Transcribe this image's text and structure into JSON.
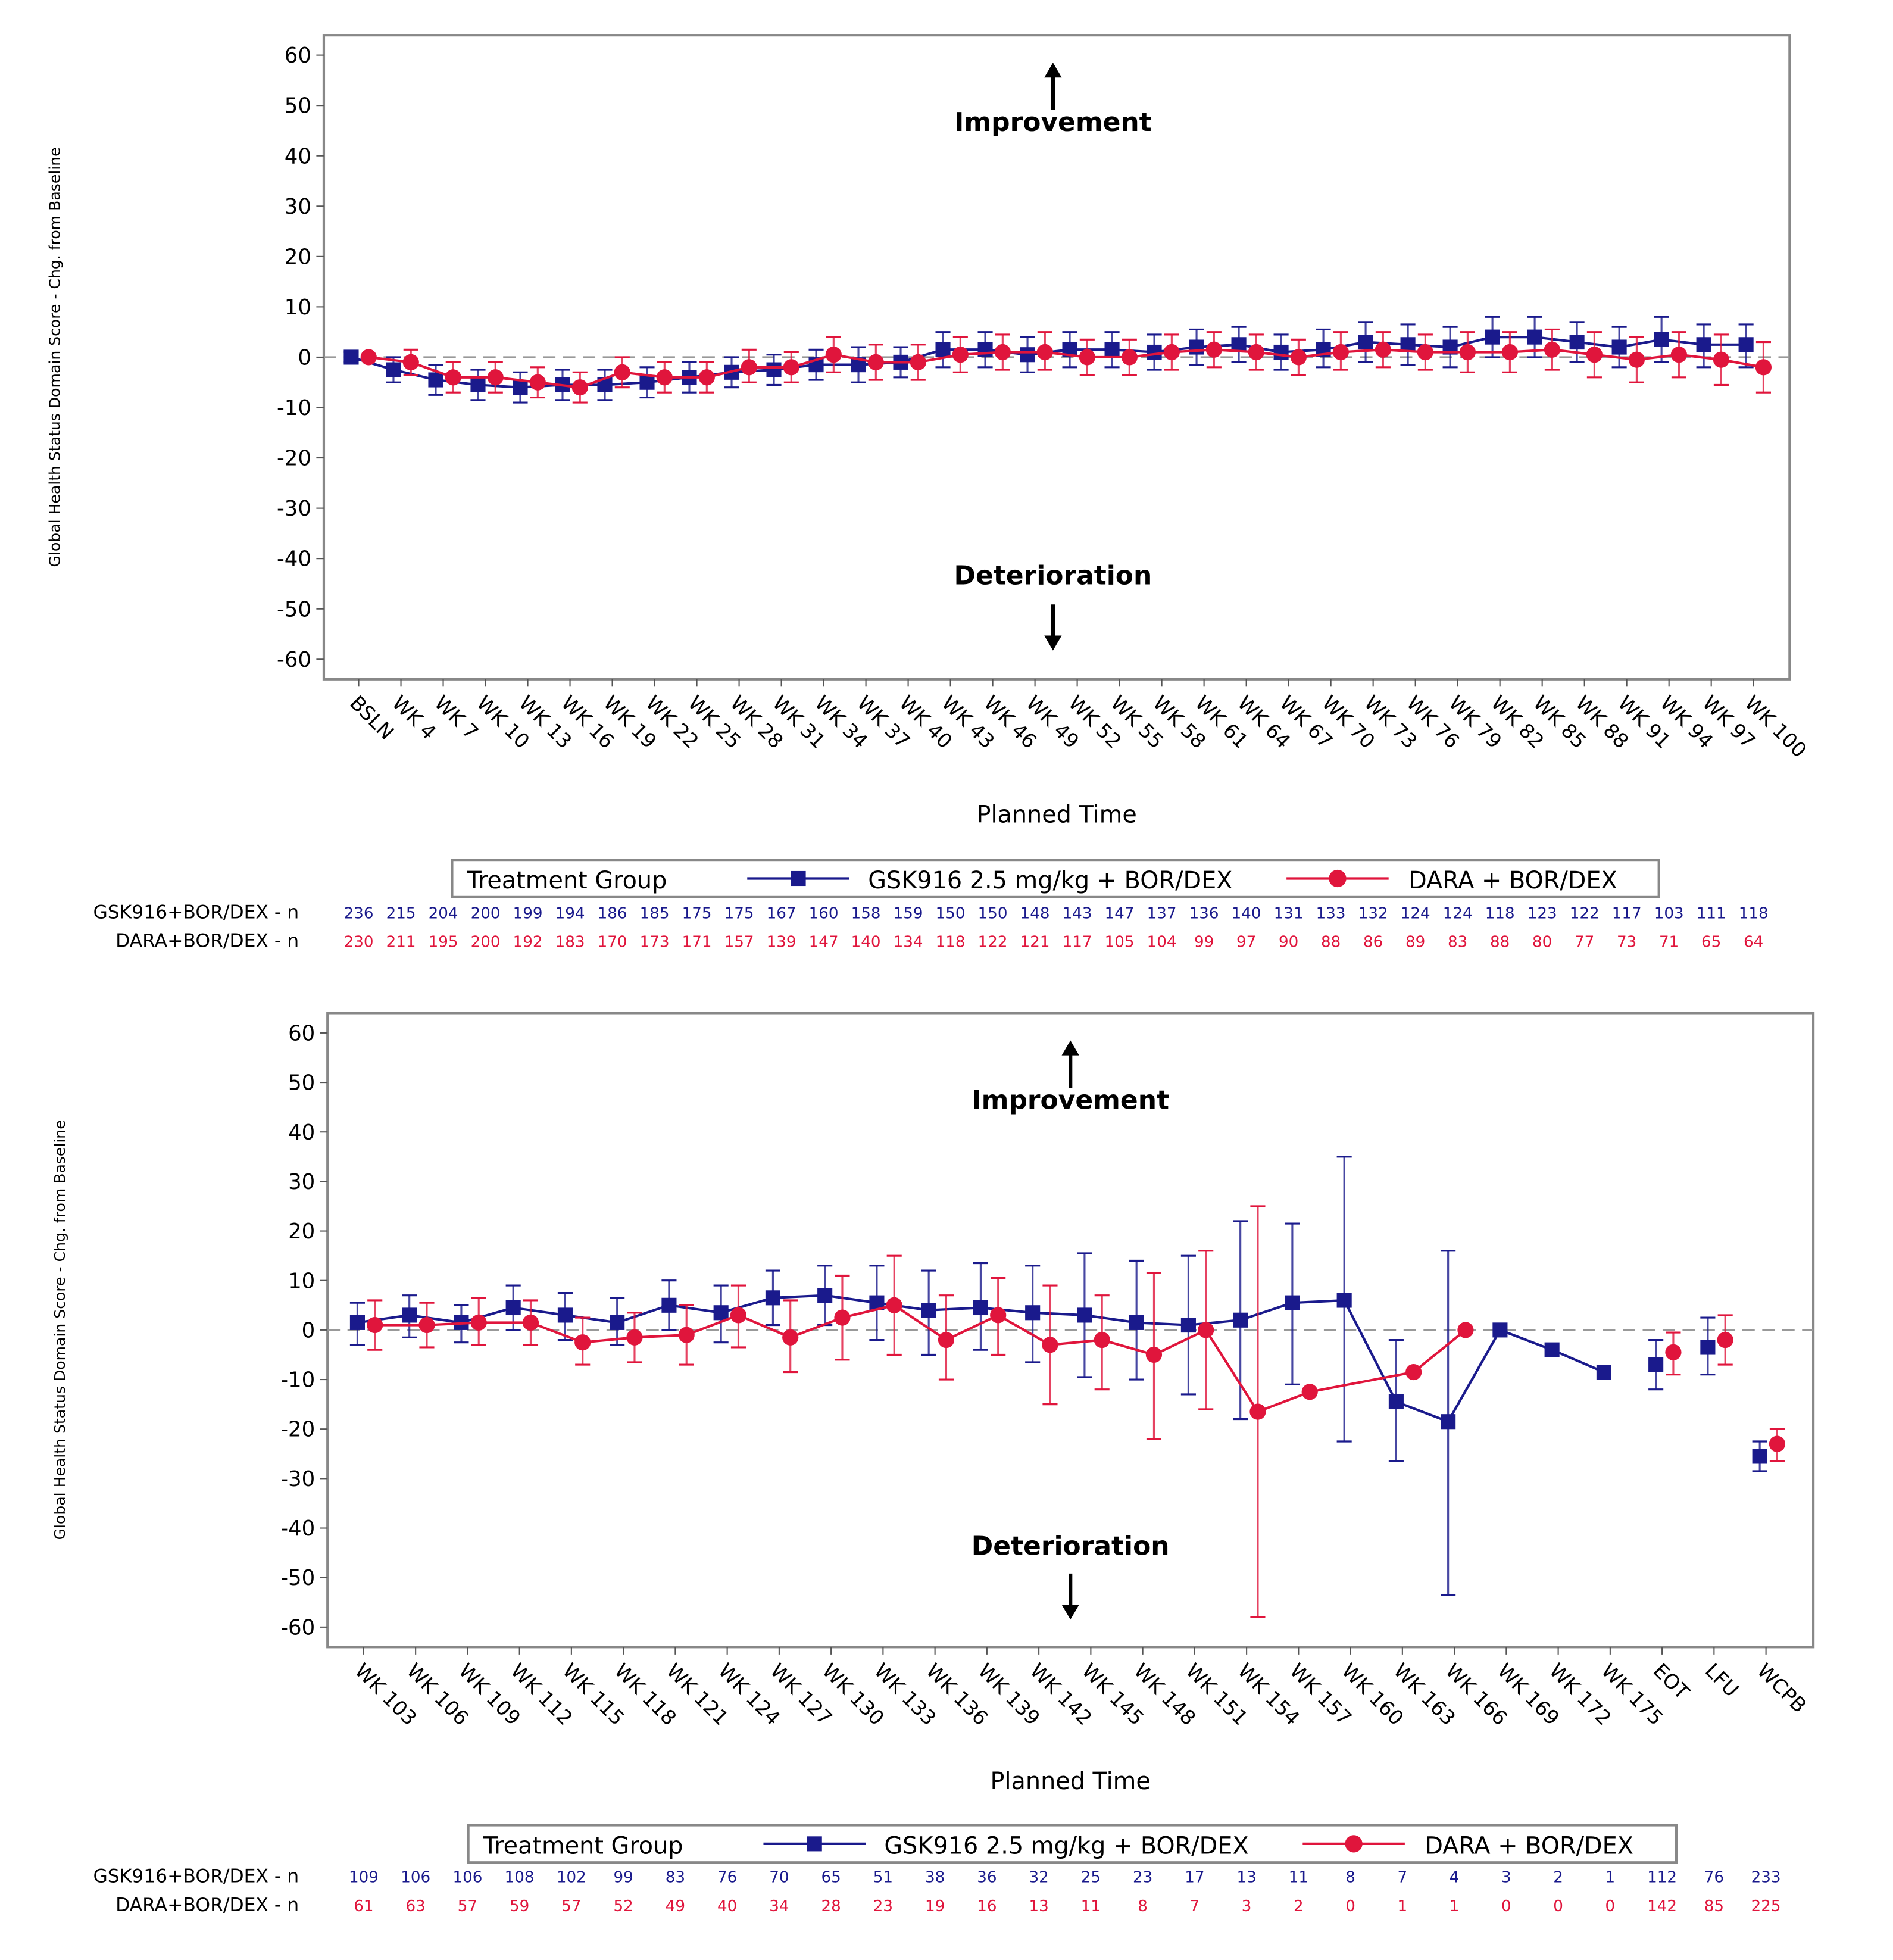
{
  "colors": {
    "gsk": "#1a1a8c",
    "dara": "#e0153c",
    "reference_line": "#999999"
  },
  "chart_data": [
    {
      "type": "line",
      "error_bars": true,
      "ylabel": "Global Health Status Domain Score - Chg. from Baseline",
      "xlabel": "Planned Time",
      "ylim": [
        -60,
        60
      ],
      "yticks": [
        60,
        50,
        40,
        30,
        20,
        10,
        0,
        -10,
        -20,
        -30,
        -40,
        -50,
        -60
      ],
      "reference_line_y": 0,
      "annotation_up": "Improvement",
      "annotation_down": "Deterioration",
      "legend_title": "Treatment Group",
      "legend_placement": "bottom",
      "categories": [
        "BSLN",
        "WK 4",
        "WK 7",
        "WK 10",
        "WK 13",
        "WK 16",
        "WK 19",
        "WK 22",
        "WK 25",
        "WK 28",
        "WK 31",
        "WK 34",
        "WK 37",
        "WK 40",
        "WK 43",
        "WK 46",
        "WK 49",
        "WK 52",
        "WK 55",
        "WK 58",
        "WK 61",
        "WK 64",
        "WK 67",
        "WK 70",
        "WK 73",
        "WK 76",
        "WK 79",
        "WK 82",
        "WK 85",
        "WK 88",
        "WK 91",
        "WK 94",
        "WK 97",
        "WK 100"
      ],
      "series": [
        {
          "name": "GSK916 2.5 mg/kg + BOR/DEX",
          "n_label": "GSK916+BOR/DEX - n",
          "marker": "square",
          "connect_breaks": [],
          "mean": [
            0,
            -2.5,
            -4.5,
            -5.5,
            -6,
            -5.5,
            -5.5,
            -5,
            -4,
            -3,
            -2.5,
            -1.5,
            -1.5,
            -1,
            1.5,
            1.5,
            0.5,
            1.5,
            1.5,
            1,
            2,
            2.5,
            1,
            1.5,
            3,
            2.5,
            2,
            4,
            4,
            3,
            2,
            3.5,
            2.5,
            2.5
          ],
          "lower": [
            -1,
            -5,
            -7.5,
            -8.5,
            -9,
            -8.5,
            -8.5,
            -8,
            -7,
            -6,
            -5.5,
            -4.5,
            -5,
            -4,
            -2,
            -2,
            -3,
            -2,
            -2,
            -2.5,
            -1.5,
            -1,
            -2.5,
            -2,
            -1,
            -1.5,
            -2,
            0,
            0,
            -1,
            -2,
            -1,
            -2,
            -2
          ],
          "upper": [
            1,
            0,
            -1.5,
            -2.5,
            -3,
            -2.5,
            -2.5,
            -2,
            -1,
            0,
            0.5,
            1.5,
            2,
            2,
            5,
            5,
            4,
            5,
            5,
            4.5,
            5.5,
            6,
            4.5,
            5.5,
            7,
            6.5,
            6,
            8,
            8,
            7,
            6,
            8,
            6.5,
            6.5
          ],
          "n": [
            236,
            215,
            204,
            200,
            199,
            194,
            186,
            185,
            175,
            175,
            167,
            160,
            158,
            159,
            150,
            150,
            148,
            143,
            147,
            137,
            136,
            140,
            131,
            133,
            132,
            124,
            124,
            118,
            123,
            122,
            117,
            103,
            111,
            118
          ]
        },
        {
          "name": "DARA + BOR/DEX",
          "n_label": "DARA+BOR/DEX - n",
          "marker": "circle",
          "connect_breaks": [],
          "mean": [
            0,
            -1,
            -4,
            -4,
            -5,
            -6,
            -3,
            -4,
            -4,
            -2,
            -2,
            0.5,
            -1,
            -1,
            0.5,
            1,
            1,
            0,
            0,
            1,
            1.5,
            1,
            0,
            1,
            1.5,
            1,
            1,
            1,
            1.5,
            0.5,
            -0.5,
            0.5,
            -0.5,
            -2
          ],
          "lower": [
            -0.5,
            -3.5,
            -7,
            -7,
            -8,
            -9,
            -6,
            -7,
            -7,
            -5,
            -5,
            -3,
            -4.5,
            -4.5,
            -3,
            -2.5,
            -2.5,
            -3.5,
            -3.5,
            -2.5,
            -2,
            -2.5,
            -3.5,
            -2.5,
            -2,
            -2.5,
            -3,
            -3,
            -2.5,
            -4,
            -5,
            -4,
            -5.5,
            -7
          ],
          "upper": [
            0.5,
            1.5,
            -1,
            -1,
            -2,
            -3,
            0,
            -1,
            -1,
            1.5,
            1,
            4,
            2.5,
            2.5,
            4,
            4.5,
            5,
            3.5,
            3.5,
            4.5,
            5,
            4.5,
            3.5,
            5,
            5,
            4.5,
            5,
            5,
            5.5,
            5,
            4,
            5,
            4.5,
            3
          ],
          "n": [
            230,
            211,
            195,
            200,
            192,
            183,
            170,
            173,
            171,
            157,
            139,
            147,
            140,
            134,
            118,
            122,
            121,
            117,
            105,
            104,
            99,
            97,
            90,
            88,
            86,
            89,
            83,
            88,
            80,
            77,
            73,
            71,
            65,
            64
          ]
        }
      ]
    },
    {
      "type": "line",
      "error_bars": true,
      "ylabel": "Global Health Status Domain Score - Chg. from Baseline",
      "xlabel": "Planned Time",
      "ylim": [
        -60,
        60
      ],
      "yticks": [
        60,
        50,
        40,
        30,
        20,
        10,
        0,
        -10,
        -20,
        -30,
        -40,
        -50,
        -60
      ],
      "reference_line_y": 0,
      "annotation_up": "Improvement",
      "annotation_down": "Deterioration",
      "legend_title": "Treatment Group",
      "legend_placement": "bottom",
      "categories": [
        "WK 103",
        "WK 106",
        "WK 109",
        "WK 112",
        "WK 115",
        "WK 118",
        "WK 121",
        "WK 124",
        "WK 127",
        "WK 130",
        "WK 133",
        "WK 136",
        "WK 139",
        "WK 142",
        "WK 145",
        "WK 148",
        "WK 151",
        "WK 154",
        "WK 157",
        "WK 160",
        "WK 163",
        "WK 166",
        "WK 169",
        "WK 172",
        "WK 175",
        "EOT",
        "LFU",
        "WCPB"
      ],
      "series": [
        {
          "name": "GSK916 2.5 mg/kg + BOR/DEX",
          "n_label": "GSK916+BOR/DEX - n",
          "marker": "square",
          "connect_breaks": [
            "EOT",
            "LFU",
            "WCPB"
          ],
          "mean": [
            1.5,
            3,
            1.5,
            4.5,
            3,
            1.5,
            5,
            3.5,
            6.5,
            7,
            5.5,
            4,
            4.5,
            3.5,
            3,
            1.5,
            1,
            2,
            5.5,
            6,
            -14.5,
            -18.5,
            0,
            -4,
            -8.5,
            -7,
            -3.5,
            -25.5
          ],
          "lower": [
            -3,
            -1.5,
            -2.5,
            0,
            -2,
            -3,
            0,
            -2.5,
            1,
            1,
            -2,
            -5,
            -4,
            -6.5,
            -9.5,
            -10,
            -13,
            -18,
            -11,
            -22.5,
            -26.5,
            -53.5,
            null,
            null,
            null,
            -12,
            -9,
            -28.5
          ],
          "upper": [
            5.5,
            7,
            5,
            9,
            7.5,
            6.5,
            10,
            9,
            12,
            13,
            13,
            12,
            13.5,
            13,
            15.5,
            14,
            15,
            22,
            21.5,
            35,
            -2,
            16,
            null,
            null,
            null,
            -2,
            2.5,
            -22.5
          ],
          "n": [
            109,
            106,
            106,
            108,
            102,
            99,
            83,
            76,
            70,
            65,
            51,
            38,
            36,
            32,
            25,
            23,
            17,
            13,
            11,
            8,
            7,
            4,
            3,
            2,
            1,
            112,
            76,
            233
          ]
        },
        {
          "name": "DARA + BOR/DEX",
          "n_label": "DARA+BOR/DEX - n",
          "marker": "circle",
          "connect_breaks": [
            "EOT",
            "LFU",
            "WCPB"
          ],
          "mean": [
            1,
            1,
            1.5,
            1.5,
            -2.5,
            -1.5,
            -1,
            3,
            -1.5,
            2.5,
            5,
            -2,
            3,
            -3,
            -2,
            -5,
            0,
            -16.5,
            -12.5,
            null,
            -8.5,
            0,
            null,
            null,
            null,
            -4.5,
            -2,
            -23
          ],
          "lower": [
            -4,
            -3.5,
            -3,
            -3,
            -7,
            -6.5,
            -7,
            -3.5,
            -8.5,
            -6,
            -5,
            -10,
            -5,
            -15,
            -12,
            -22,
            -16,
            -58,
            null,
            null,
            null,
            null,
            null,
            null,
            null,
            -9,
            -7,
            -26.5
          ],
          "upper": [
            6,
            5.5,
            6.5,
            6,
            2.5,
            3.5,
            5,
            9,
            6,
            11,
            15,
            7,
            10.5,
            9,
            7,
            11.5,
            16,
            25,
            null,
            null,
            null,
            null,
            null,
            null,
            null,
            -0.5,
            3,
            -20
          ],
          "n": [
            61,
            63,
            57,
            59,
            57,
            52,
            49,
            40,
            34,
            28,
            23,
            19,
            16,
            13,
            11,
            8,
            7,
            3,
            2,
            0,
            1,
            1,
            0,
            0,
            0,
            142,
            85,
            225
          ]
        }
      ]
    }
  ]
}
